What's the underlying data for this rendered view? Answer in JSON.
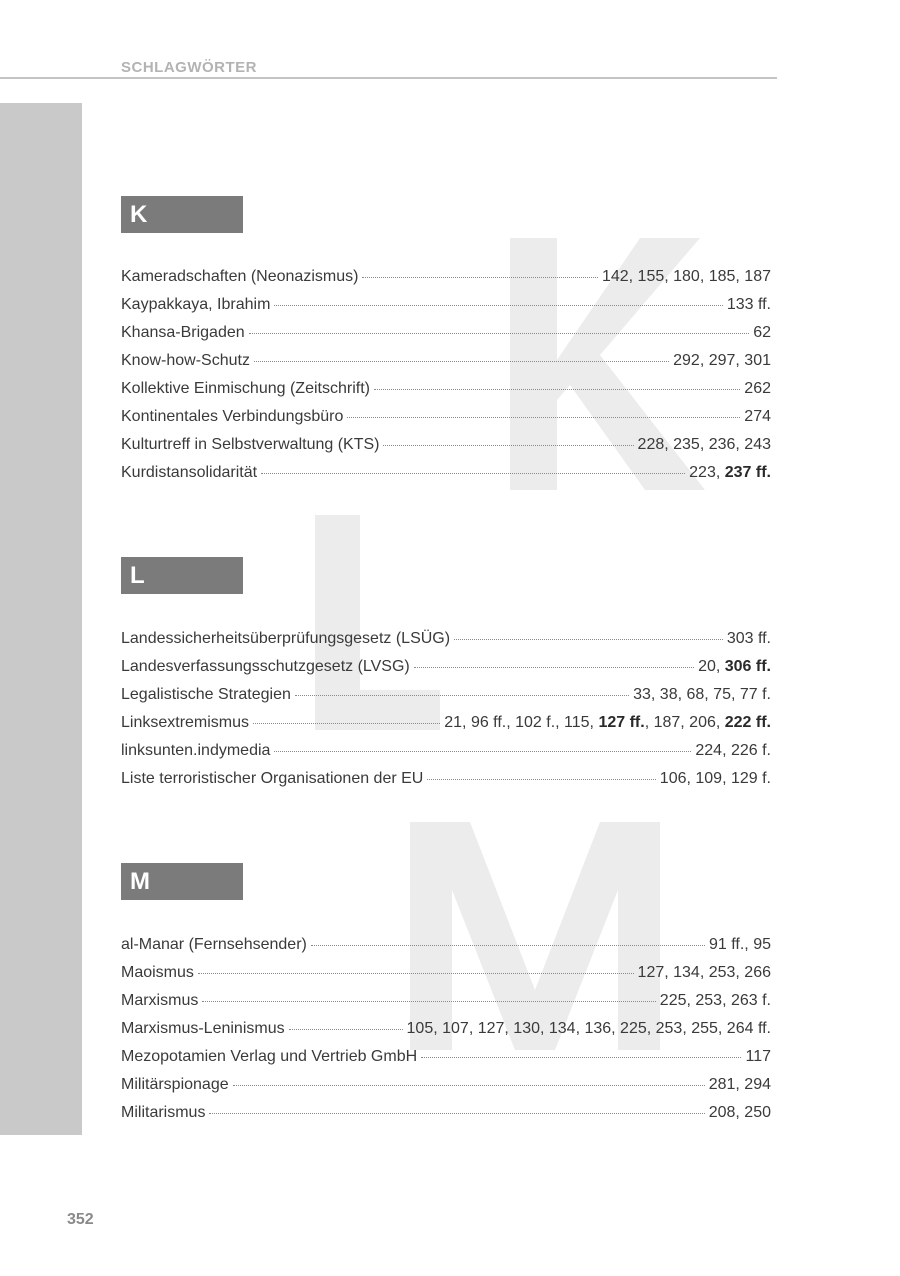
{
  "header": {
    "running_head": "SCHLAGWÖRTER"
  },
  "page_number": "352",
  "sections": [
    {
      "letter": "K",
      "entries": [
        {
          "term": "Kameradschaften (Neonazismus)",
          "pages": [
            {
              "t": "142, 155, 180, 185, 187",
              "b": false
            }
          ]
        },
        {
          "term": "Kaypakkaya, Ibrahim",
          "pages": [
            {
              "t": "133 ff.",
              "b": false
            }
          ]
        },
        {
          "term": "Khansa-Brigaden",
          "pages": [
            {
              "t": "62",
              "b": false
            }
          ]
        },
        {
          "term": "Know-how-Schutz",
          "pages": [
            {
              "t": "292, 297, 301",
              "b": false
            }
          ]
        },
        {
          "term": "Kollektive Einmischung (Zeitschrift)",
          "pages": [
            {
              "t": "262",
              "b": false
            }
          ]
        },
        {
          "term": "Kontinentales Verbindungsbüro",
          "pages": [
            {
              "t": "274",
              "b": false
            }
          ]
        },
        {
          "term": "Kulturtreff in Selbstverwaltung (KTS)",
          "pages": [
            {
              "t": "228, 235, 236, 243",
              "b": false
            }
          ]
        },
        {
          "term": "Kurdistansolidarität",
          "pages": [
            {
              "t": "223, ",
              "b": false
            },
            {
              "t": "237 ff.",
              "b": true
            }
          ]
        }
      ]
    },
    {
      "letter": "L",
      "entries": [
        {
          "term": "Landessicherheitsüberprüfungsgesetz (LSÜG)",
          "pages": [
            {
              "t": "303 ff.",
              "b": false
            }
          ]
        },
        {
          "term": "Landesverfassungsschutzgesetz (LVSG)",
          "pages": [
            {
              "t": "20, ",
              "b": false
            },
            {
              "t": "306 ff.",
              "b": true
            }
          ]
        },
        {
          "term": "Legalistische Strategien",
          "pages": [
            {
              "t": "33, 38, 68, 75, 77 f.",
              "b": false
            }
          ]
        },
        {
          "term": "Linksextremismus",
          "pages": [
            {
              "t": "21, 96 ff., 102 f., 115, ",
              "b": false
            },
            {
              "t": "127 ff.",
              "b": true
            },
            {
              "t": ", 187, 206, ",
              "b": false
            },
            {
              "t": "222 ff.",
              "b": true
            }
          ]
        },
        {
          "term": "linksunten.indymedia",
          "pages": [
            {
              "t": "224, 226 f.",
              "b": false
            }
          ]
        },
        {
          "term": "Liste terroristischer Organisationen der EU",
          "pages": [
            {
              "t": "106, 109, 129 f.",
              "b": false
            }
          ]
        }
      ]
    },
    {
      "letter": "M",
      "entries": [
        {
          "term": "al-Manar (Fernsehsender)",
          "pages": [
            {
              "t": "91 ff., 95",
              "b": false
            }
          ]
        },
        {
          "term": "Maoismus",
          "pages": [
            {
              "t": "127, 134, 253, 266",
              "b": false
            }
          ]
        },
        {
          "term": "Marxismus",
          "pages": [
            {
              "t": "225, 253, 263 f.",
              "b": false
            }
          ]
        },
        {
          "term": "Marxismus-Leninismus",
          "pages": [
            {
              "t": "105, 107, 127, 130, 134, 136, 225, 253, 255, 264 ff.",
              "b": false
            }
          ]
        },
        {
          "term": "Mezopotamien Verlag und Vertrieb GmbH",
          "pages": [
            {
              "t": "117",
              "b": false
            }
          ]
        },
        {
          "term": "Militärspionage",
          "pages": [
            {
              "t": "281, 294",
              "b": false
            }
          ]
        },
        {
          "term": "Militarismus",
          "pages": [
            {
              "t": "208, 250",
              "b": false
            }
          ]
        }
      ]
    }
  ]
}
